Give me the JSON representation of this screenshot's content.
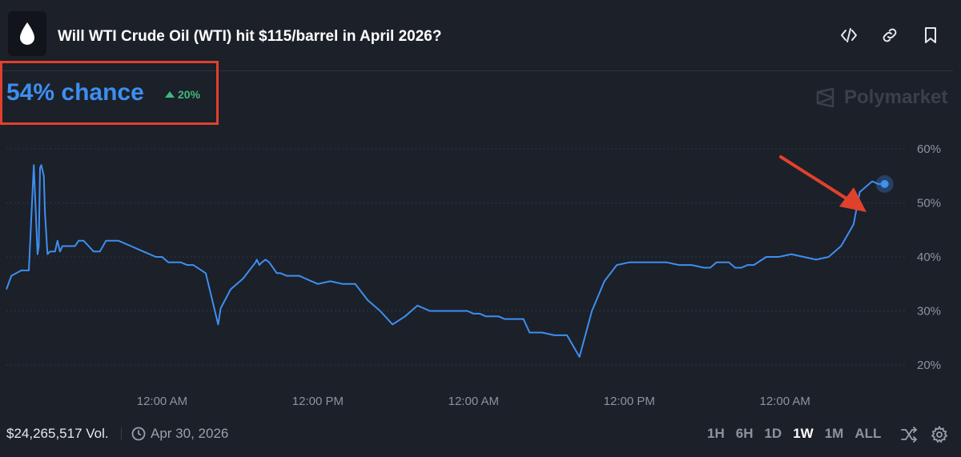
{
  "header": {
    "title": "Will WTI Crude Oil (WTI) hit $115/barrel in April 2026?",
    "icons": [
      "drop-icon",
      "embed-code-icon",
      "link-icon",
      "bookmark-icon"
    ]
  },
  "summary": {
    "chance": "54% chance",
    "change": "20%",
    "change_direction": "up",
    "change_color": "#3fb97a",
    "accent_color": "#3d8ff0"
  },
  "watermark": {
    "text": "Polymarket"
  },
  "chart_data": {
    "type": "line",
    "title": "",
    "xlabel": "",
    "ylabel": "",
    "ylim": [
      18,
      62
    ],
    "y_ticks": [
      60,
      50,
      40,
      30,
      20
    ],
    "y_tick_labels": [
      "60%",
      "50%",
      "40%",
      "30%",
      "20%"
    ],
    "x_tick_labels": [
      "12:00 AM",
      "12:00 PM",
      "12:00 AM",
      "12:00 PM",
      "12:00 AM"
    ],
    "x_ticks": [
      0.125,
      0.25,
      0.375,
      0.5,
      0.625
    ],
    "xlim": [
      0,
      0.72
    ],
    "grid": true,
    "series": [
      {
        "color": "#3d8ff0",
        "end_marker": true,
        "x": [
          0.0,
          0.004,
          0.008,
          0.012,
          0.018,
          0.022,
          0.025,
          0.026,
          0.027,
          0.028,
          0.03,
          0.031,
          0.033,
          0.035,
          0.037,
          0.039,
          0.041,
          0.043,
          0.045,
          0.05,
          0.055,
          0.058,
          0.06,
          0.062,
          0.066,
          0.07,
          0.075,
          0.08,
          0.09,
          0.1,
          0.11,
          0.12,
          0.125,
          0.13,
          0.135,
          0.14,
          0.145,
          0.15,
          0.16,
          0.17,
          0.172,
          0.18,
          0.19,
          0.2,
          0.201,
          0.203,
          0.205,
          0.208,
          0.211,
          0.214,
          0.217,
          0.22,
          0.225,
          0.23,
          0.235,
          0.24,
          0.245,
          0.25,
          0.26,
          0.27,
          0.28,
          0.29,
          0.3,
          0.31,
          0.32,
          0.33,
          0.34,
          0.35,
          0.36,
          0.37,
          0.375,
          0.38,
          0.385,
          0.39,
          0.395,
          0.4,
          0.405,
          0.41,
          0.415,
          0.42,
          0.43,
          0.44,
          0.45,
          0.46,
          0.47,
          0.48,
          0.49,
          0.5,
          0.51,
          0.52,
          0.53,
          0.54,
          0.55,
          0.56,
          0.565,
          0.57,
          0.575,
          0.58,
          0.585,
          0.59,
          0.595,
          0.6,
          0.61,
          0.62,
          0.63,
          0.64,
          0.65,
          0.66,
          0.67,
          0.68,
          0.685,
          0.69,
          0.695,
          0.7,
          0.705
        ],
        "y": [
          34,
          36.5,
          37,
          37.5,
          37.5,
          57,
          40.5,
          42,
          56.5,
          57,
          55,
          48,
          40.5,
          41,
          41,
          41,
          43,
          41,
          42,
          42,
          42,
          43,
          43,
          43,
          42,
          41,
          41,
          43,
          43,
          42,
          41,
          40,
          40,
          39,
          39,
          39,
          38.5,
          38.5,
          37,
          27.5,
          30.5,
          34,
          36,
          39,
          39.5,
          38.5,
          39,
          39.5,
          39,
          38,
          37,
          37,
          36.5,
          36.5,
          36.5,
          36,
          35.5,
          35,
          35.5,
          35,
          35,
          32,
          30,
          27.5,
          29,
          31,
          30,
          30,
          30,
          30,
          29.5,
          29.5,
          29,
          29,
          29,
          28.5,
          28.5,
          28.5,
          28.5,
          26,
          26,
          25.5,
          25.5,
          21.5,
          30,
          35.5,
          38.5,
          39,
          39,
          39,
          39,
          38.5,
          38.5,
          38,
          38,
          39,
          39,
          39,
          38,
          38,
          38.5,
          38.5,
          40,
          40,
          40.5,
          40,
          39.5,
          40,
          42,
          46,
          52,
          53,
          54,
          53.5,
          53.5
        ]
      }
    ]
  },
  "footer": {
    "volume": "$24,265,517 Vol.",
    "end_date": "Apr 30, 2026",
    "ranges": [
      "1H",
      "6H",
      "1D",
      "1W",
      "1M",
      "ALL"
    ],
    "active_range": "1W",
    "icons": [
      "clock-icon",
      "shuffle-icon",
      "settings-icon"
    ]
  },
  "annotation": {
    "highlight_color": "#e0412d"
  }
}
